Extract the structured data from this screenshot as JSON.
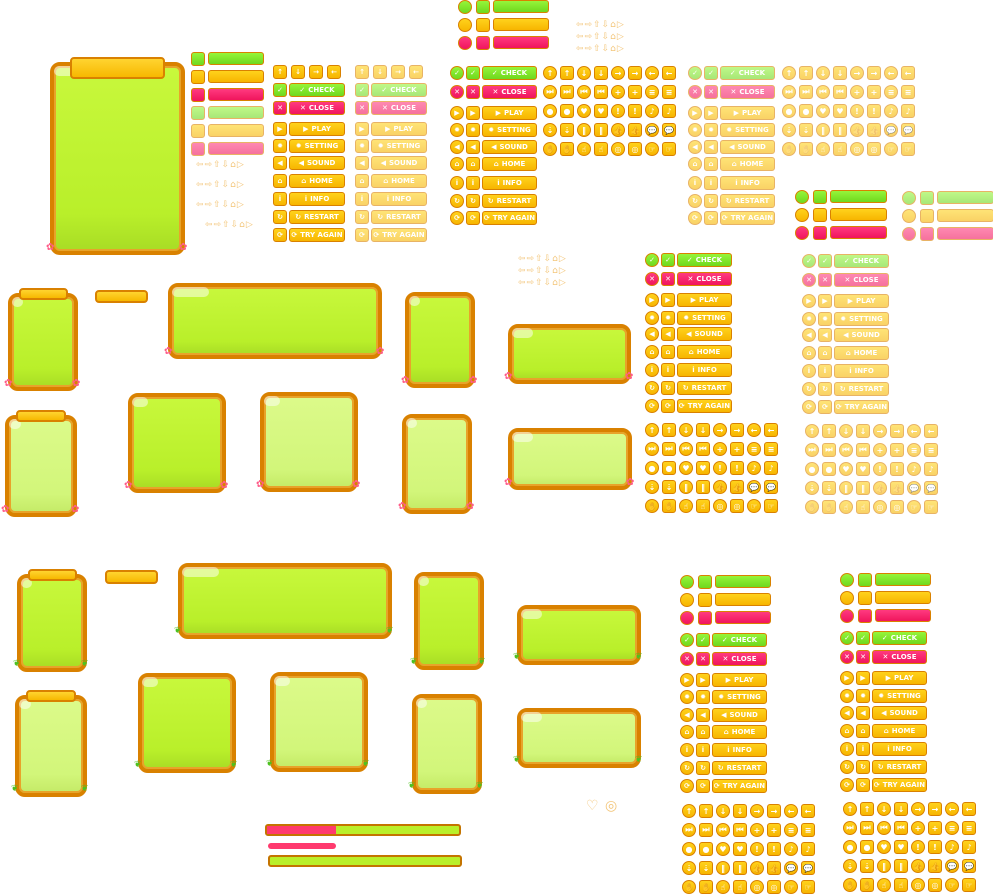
{
  "buttons": {
    "check": "CHECK",
    "close": "CLOSE",
    "play": "PLAY",
    "setting": "SETTING",
    "sound": "SOUND",
    "home": "HOME",
    "info": "INFO",
    "restart": "RESTART",
    "try_again": "TRY AGAIN"
  },
  "icons": {
    "check": "✓",
    "close": "✕",
    "play": "▶",
    "setting": "✹",
    "sound": "◀",
    "home": "⌂",
    "info": "i",
    "restart": "↻",
    "try_again": "⟳"
  },
  "icon_grid": [
    "↑",
    "↓",
    "→",
    "←",
    "⏭",
    "⏮",
    "+",
    "≡",
    "●",
    "♥",
    "!",
    "♪",
    "⇣",
    "‖",
    "👍",
    "💬",
    "✋",
    "☝",
    "◎",
    "☞"
  ],
  "colors": {
    "panel_fill": "#c3f53a",
    "panel_border": "#d98100",
    "yellow": "#ffc800",
    "green": "#8ef230",
    "pink": "#ff1f6e"
  },
  "progress": {
    "top_bar": 0.36,
    "thin_bar": 1.0,
    "bottom_bar": 1.0
  }
}
